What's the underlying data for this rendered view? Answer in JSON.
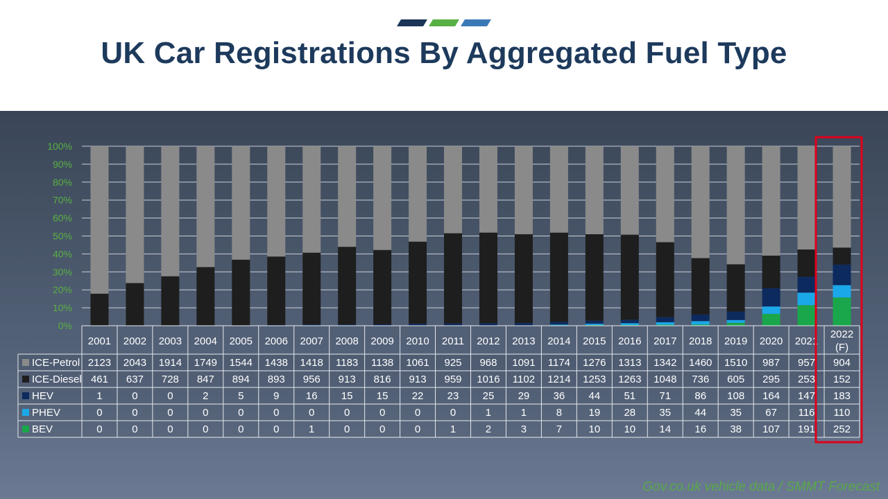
{
  "page": {
    "title": "UK Car Registrations By Aggregated Fuel Type",
    "source": "Gov.co.uk vehicle data / SMMT Forecast",
    "accent_colors": [
      "#1b3556",
      "#58b044",
      "#3a79b6"
    ]
  },
  "chart_data": {
    "type": "bar",
    "stacked": "100%",
    "categories": [
      "2001",
      "2002",
      "2003",
      "2004",
      "2005",
      "2006",
      "2007",
      "2008",
      "2009",
      "2010",
      "2011",
      "2012",
      "2013",
      "2014",
      "2015",
      "2016",
      "2017",
      "2018",
      "2019",
      "2020",
      "2021",
      "2022 (F)"
    ],
    "series": [
      {
        "name": "BEV",
        "color": "#1aa64a",
        "values": [
          0,
          0,
          0,
          0,
          0,
          0,
          1,
          0,
          0,
          0,
          1,
          2,
          3,
          7,
          10,
          10,
          14,
          16,
          38,
          107,
          191,
          252
        ]
      },
      {
        "name": "PHEV",
        "color": "#1ba8e8",
        "values": [
          0,
          0,
          0,
          0,
          0,
          0,
          0,
          0,
          0,
          0,
          0,
          1,
          1,
          8,
          19,
          28,
          35,
          44,
          35,
          67,
          116,
          110
        ]
      },
      {
        "name": "HEV",
        "color": "#0d2a5e",
        "values": [
          1,
          0,
          0,
          2,
          5,
          9,
          16,
          15,
          15,
          22,
          23,
          25,
          29,
          36,
          44,
          51,
          71,
          86,
          108,
          164,
          147,
          183
        ]
      },
      {
        "name": "ICE-Diesel",
        "color": "#1e1e1e",
        "values": [
          461,
          637,
          728,
          847,
          894,
          893,
          956,
          913,
          816,
          913,
          959,
          1016,
          1102,
          1214,
          1253,
          1263,
          1048,
          736,
          605,
          295,
          253,
          152
        ]
      },
      {
        "name": "ICE-Petrol",
        "color": "#8a8a8a",
        "values": [
          2123,
          2043,
          1914,
          1749,
          1544,
          1438,
          1418,
          1183,
          1138,
          1061,
          925,
          968,
          1091,
          1174,
          1276,
          1313,
          1342,
          1460,
          1510,
          987,
          957,
          904
        ]
      }
    ],
    "table_row_order": [
      "ICE-Petrol",
      "ICE-Diesel",
      "HEV",
      "PHEV",
      "BEV"
    ],
    "y_ticks": [
      "0%",
      "10%",
      "20%",
      "30%",
      "40%",
      "50%",
      "60%",
      "70%",
      "80%",
      "90%",
      "100%"
    ],
    "ylim": [
      0,
      100
    ],
    "grid": true,
    "tick_label_color": "#59b044",
    "highlight_category": "2022 (F)",
    "highlight_color": "#e0001b",
    "data_table": true
  }
}
